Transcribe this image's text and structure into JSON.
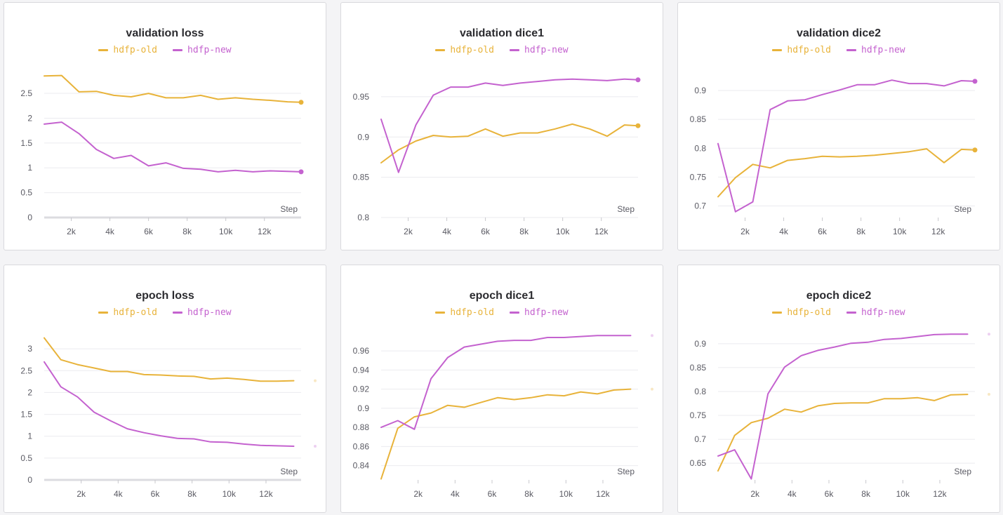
{
  "colors": {
    "old": "#e8b33a",
    "new": "#c462cf",
    "grid": "#ebebef",
    "zero": "#dcdce0"
  },
  "legend": {
    "old": "hdfp-old",
    "new": "hdfp-new"
  },
  "step_label": "Step",
  "chart_data": [
    {
      "type": "line",
      "title": "validation loss",
      "xlabel": "Step",
      "xlim": [
        600,
        13900
      ],
      "ylim": [
        0,
        3.08
      ],
      "x_ticks": [
        2000,
        4000,
        6000,
        8000,
        10000,
        12000
      ],
      "x_tick_labels": [
        "2k",
        "4k",
        "6k",
        "8k",
        "10k",
        "12k"
      ],
      "y_ticks": [
        0,
        0.5,
        1,
        1.5,
        2,
        2.5
      ],
      "y_tick_labels": [
        "0",
        "0.5",
        "1",
        "1.5",
        "2",
        "2.5"
      ],
      "zero_line": true,
      "end_marker": "solid",
      "series": [
        {
          "name": "hdfp-old",
          "x": [
            600,
            1500,
            2400,
            3300,
            4200,
            5100,
            6000,
            6900,
            7800,
            8700,
            9600,
            10500,
            11400,
            12300,
            13200,
            13900
          ],
          "values": [
            2.85,
            2.86,
            2.53,
            2.54,
            2.46,
            2.43,
            2.5,
            2.41,
            2.41,
            2.46,
            2.38,
            2.41,
            2.38,
            2.36,
            2.33,
            2.32
          ]
        },
        {
          "name": "hdfp-new",
          "x": [
            600,
            1500,
            2400,
            3300,
            4200,
            5100,
            6000,
            6900,
            7800,
            8700,
            9600,
            10500,
            11400,
            12300,
            13200,
            13900
          ],
          "values": [
            1.88,
            1.92,
            1.69,
            1.37,
            1.19,
            1.25,
            1.04,
            1.1,
            0.99,
            0.97,
            0.92,
            0.95,
            0.92,
            0.94,
            0.93,
            0.92
          ]
        }
      ]
    },
    {
      "type": "line",
      "title": "validation dice1",
      "xlabel": "Step",
      "xlim": [
        600,
        13900
      ],
      "ylim": [
        0.8,
        0.99
      ],
      "x_ticks": [
        2000,
        4000,
        6000,
        8000,
        10000,
        12000
      ],
      "x_tick_labels": [
        "2k",
        "4k",
        "6k",
        "8k",
        "10k",
        "12k"
      ],
      "y_ticks": [
        0.8,
        0.85,
        0.9,
        0.95
      ],
      "y_tick_labels": [
        "0.8",
        "0.85",
        "0.9",
        "0.95"
      ],
      "zero_line": false,
      "end_marker": "solid",
      "series": [
        {
          "name": "hdfp-old",
          "x": [
            600,
            1500,
            2400,
            3300,
            4200,
            5100,
            6000,
            6900,
            7800,
            8700,
            9600,
            10500,
            11400,
            12300,
            13200,
            13900
          ],
          "values": [
            0.868,
            0.884,
            0.895,
            0.902,
            0.9,
            0.901,
            0.91,
            0.901,
            0.905,
            0.905,
            0.91,
            0.916,
            0.91,
            0.901,
            0.915,
            0.914
          ]
        },
        {
          "name": "hdfp-new",
          "x": [
            600,
            1500,
            2400,
            3300,
            4200,
            5100,
            6000,
            6900,
            7800,
            8700,
            9600,
            10500,
            11400,
            12300,
            13200,
            13900
          ],
          "values": [
            0.922,
            0.856,
            0.915,
            0.952,
            0.962,
            0.962,
            0.967,
            0.964,
            0.967,
            0.969,
            0.971,
            0.972,
            0.971,
            0.97,
            0.972,
            0.971
          ]
        }
      ]
    },
    {
      "type": "line",
      "title": "validation dice2",
      "xlabel": "Step",
      "xlim": [
        600,
        13900
      ],
      "ylim": [
        0.68,
        0.945
      ],
      "x_ticks": [
        2000,
        4000,
        6000,
        8000,
        10000,
        12000
      ],
      "x_tick_labels": [
        "2k",
        "4k",
        "6k",
        "8k",
        "10k",
        "12k"
      ],
      "y_ticks": [
        0.7,
        0.75,
        0.8,
        0.85,
        0.9
      ],
      "y_tick_labels": [
        "0.7",
        "0.75",
        "0.8",
        "0.85",
        "0.9"
      ],
      "zero_line": false,
      "end_marker": "solid",
      "series": [
        {
          "name": "hdfp-old",
          "x": [
            600,
            1500,
            2400,
            3300,
            4200,
            5100,
            6000,
            6900,
            7800,
            8700,
            9600,
            10500,
            11400,
            12300,
            13200,
            13900
          ],
          "values": [
            0.716,
            0.749,
            0.772,
            0.766,
            0.779,
            0.782,
            0.786,
            0.785,
            0.786,
            0.788,
            0.791,
            0.794,
            0.799,
            0.775,
            0.798,
            0.797
          ]
        },
        {
          "name": "hdfp-new",
          "x": [
            600,
            1500,
            2400,
            3300,
            4200,
            5100,
            6000,
            6900,
            7800,
            8700,
            9600,
            10500,
            11400,
            12300,
            13200,
            13900
          ],
          "values": [
            0.808,
            0.69,
            0.707,
            0.867,
            0.882,
            0.884,
            0.893,
            0.901,
            0.91,
            0.91,
            0.918,
            0.912,
            0.912,
            0.908,
            0.917,
            0.916
          ]
        }
      ]
    },
    {
      "type": "line",
      "title": "epoch loss",
      "xlabel": "Step",
      "xlim": [
        0,
        13900
      ],
      "ylim": [
        0,
        3.5
      ],
      "x_ticks": [
        2000,
        4000,
        6000,
        8000,
        10000,
        12000
      ],
      "x_tick_labels": [
        "2k",
        "4k",
        "6k",
        "8k",
        "10k",
        "12k"
      ],
      "y_ticks": [
        0,
        0.5,
        1,
        1.5,
        2,
        2.5,
        3
      ],
      "y_tick_labels": [
        "0",
        "0.5",
        "1",
        "1.5",
        "2",
        "2.5",
        "3"
      ],
      "zero_line": true,
      "end_marker": "faint",
      "series": [
        {
          "name": "hdfp-old",
          "x": [
            0,
            900,
            1800,
            2700,
            3600,
            4500,
            5400,
            6300,
            7200,
            8100,
            9000,
            9900,
            10800,
            11700,
            12600,
            13500
          ],
          "values": [
            3.25,
            2.75,
            2.64,
            2.56,
            2.48,
            2.48,
            2.41,
            2.4,
            2.38,
            2.37,
            2.31,
            2.33,
            2.3,
            2.26,
            2.26,
            2.27
          ]
        },
        {
          "name": "hdfp-new",
          "x": [
            0,
            900,
            1800,
            2700,
            3600,
            4500,
            5400,
            6300,
            7200,
            8100,
            9000,
            9900,
            10800,
            11700,
            12600,
            13500
          ],
          "values": [
            2.7,
            2.13,
            1.9,
            1.55,
            1.35,
            1.17,
            1.08,
            1.01,
            0.95,
            0.94,
            0.87,
            0.86,
            0.82,
            0.79,
            0.78,
            0.77
          ]
        }
      ]
    },
    {
      "type": "line",
      "title": "epoch dice1",
      "xlabel": "Step",
      "xlim": [
        0,
        13900
      ],
      "ylim": [
        0.825,
        0.985
      ],
      "x_ticks": [
        2000,
        4000,
        6000,
        8000,
        10000,
        12000
      ],
      "x_tick_labels": [
        "2k",
        "4k",
        "6k",
        "8k",
        "10k",
        "12k"
      ],
      "y_ticks": [
        0.84,
        0.86,
        0.88,
        0.9,
        0.92,
        0.94,
        0.96
      ],
      "y_tick_labels": [
        "0.84",
        "0.86",
        "0.88",
        "0.9",
        "0.92",
        "0.94",
        "0.96"
      ],
      "zero_line": false,
      "end_marker": "faint",
      "series": [
        {
          "name": "hdfp-old",
          "x": [
            0,
            900,
            1800,
            2700,
            3600,
            4500,
            5400,
            6300,
            7200,
            8100,
            9000,
            9900,
            10800,
            11700,
            12600,
            13500
          ],
          "values": [
            0.826,
            0.879,
            0.891,
            0.895,
            0.903,
            0.901,
            0.906,
            0.911,
            0.909,
            0.911,
            0.914,
            0.913,
            0.917,
            0.915,
            0.919,
            0.92
          ]
        },
        {
          "name": "hdfp-new",
          "x": [
            0,
            900,
            1800,
            2700,
            3600,
            4500,
            5400,
            6300,
            7200,
            8100,
            9000,
            9900,
            10800,
            11700,
            12600,
            13500
          ],
          "values": [
            0.88,
            0.887,
            0.878,
            0.931,
            0.953,
            0.964,
            0.967,
            0.97,
            0.971,
            0.971,
            0.974,
            0.974,
            0.975,
            0.976,
            0.976,
            0.976
          ]
        }
      ]
    },
    {
      "type": "line",
      "title": "epoch dice2",
      "xlabel": "Step",
      "xlim": [
        0,
        13900
      ],
      "ylim": [
        0.615,
        0.935
      ],
      "x_ticks": [
        2000,
        4000,
        6000,
        8000,
        10000,
        12000
      ],
      "x_tick_labels": [
        "2k",
        "4k",
        "6k",
        "8k",
        "10k",
        "12k"
      ],
      "y_ticks": [
        0.65,
        0.7,
        0.75,
        0.8,
        0.85,
        0.9
      ],
      "y_tick_labels": [
        "0.65",
        "0.7",
        "0.75",
        "0.8",
        "0.85",
        "0.9"
      ],
      "zero_line": false,
      "end_marker": "faint",
      "series": [
        {
          "name": "hdfp-old",
          "x": [
            0,
            900,
            1800,
            2700,
            3600,
            4500,
            5400,
            6300,
            7200,
            8100,
            9000,
            9900,
            10800,
            11700,
            12600,
            13500
          ],
          "values": [
            0.634,
            0.708,
            0.735,
            0.744,
            0.763,
            0.757,
            0.77,
            0.775,
            0.776,
            0.776,
            0.785,
            0.785,
            0.787,
            0.781,
            0.793,
            0.794
          ]
        },
        {
          "name": "hdfp-new",
          "x": [
            0,
            900,
            1800,
            2700,
            3600,
            4500,
            5400,
            6300,
            7200,
            8100,
            9000,
            9900,
            10800,
            11700,
            12600,
            13500
          ],
          "values": [
            0.665,
            0.678,
            0.617,
            0.795,
            0.851,
            0.875,
            0.886,
            0.893,
            0.901,
            0.903,
            0.909,
            0.911,
            0.915,
            0.919,
            0.92,
            0.92
          ]
        }
      ]
    }
  ]
}
